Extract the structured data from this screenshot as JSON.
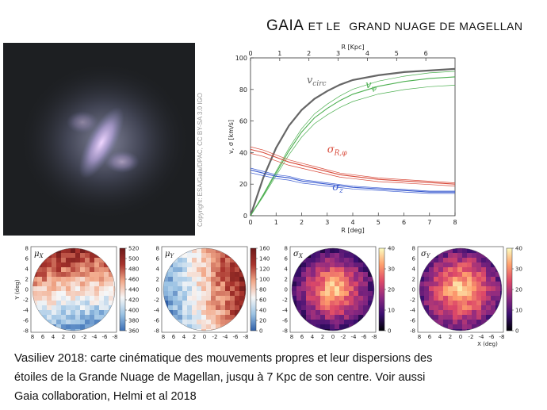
{
  "slide": {
    "title_part1": "GAIA",
    "title_part2": "ET LE",
    "title_part3": "GRAND NUAGE DE MAGELLAN",
    "photo_credit": "Copyright: ESA/Gaia/DPAC, CC BY-SA 3.0 IGO",
    "caption_name": "Vasiliev 2018",
    "caption_line1": ": carte cinématique des mouvements propres et leur dispersions des",
    "caption_line2": "étoiles de la Grande Nuage de Magellan, jusqu à 7 Kpc de son centre. Voir aussi",
    "caption_line3": "Gaia collaboration, Helmi et al 2018"
  },
  "chart_data": [
    {
      "type": "line",
      "xlabel": "R [deg]",
      "x2label": "R [Kpc]",
      "ylabel": "v, σ [km/s]",
      "xlim": [
        0,
        8
      ],
      "ylim": [
        0,
        100
      ],
      "x2lim": [
        0,
        7
      ],
      "xticks": [
        0,
        1,
        2,
        3,
        4,
        5,
        6,
        7,
        8
      ],
      "x2ticks": [
        0,
        1,
        2,
        3,
        4,
        5,
        6
      ],
      "yticks": [
        0,
        20,
        40,
        60,
        80,
        100
      ],
      "x": [
        0,
        0.5,
        1,
        1.5,
        2,
        2.5,
        3,
        3.5,
        4,
        5,
        6,
        7,
        8
      ],
      "series": [
        {
          "name": "v_circ",
          "label": "v",
          "sub": "circ",
          "color": "#666666",
          "values": [
            0,
            24,
            43,
            57,
            67,
            74,
            79,
            83,
            86,
            89,
            91,
            92,
            93
          ]
        },
        {
          "name": "v_φ",
          "label": "v",
          "sub": "φ",
          "color": "#4caf50",
          "values": [
            0,
            13,
            27,
            41,
            53,
            62,
            68,
            73,
            77,
            82,
            85,
            87,
            88
          ]
        },
        {
          "name": "σ_R,φ",
          "label": "σ",
          "sub": "R,φ",
          "color": "#d84a3a",
          "values": [
            42,
            40,
            37,
            34,
            32,
            30,
            28,
            26,
            25,
            23,
            22,
            21,
            20
          ]
        },
        {
          "name": "σ_z",
          "label": "σ",
          "sub": "z",
          "color": "#3a5bd0",
          "values": [
            29,
            27,
            25,
            24,
            22,
            21,
            20,
            19,
            18,
            17,
            16,
            15,
            15
          ]
        }
      ],
      "grid": false
    },
    {
      "type": "heatmap",
      "label": "μ",
      "sub": "X",
      "colormap": [
        "#3b6fb6",
        "#9cc3e4",
        "#f7f7f7",
        "#f2a98a",
        "#a9342d",
        "#6e1a1a"
      ],
      "colorbar_ticks": [
        360,
        380,
        400,
        420,
        440,
        460,
        480,
        500,
        520
      ],
      "colorbar_lim": [
        360,
        520
      ],
      "xticks": [
        8,
        6,
        4,
        2,
        0,
        -2,
        -4,
        -6,
        -8
      ],
      "yticks": [
        8,
        6,
        4,
        2,
        0,
        -2,
        -4,
        -6,
        -8
      ],
      "ylabel": "Y (deg)",
      "xlabel": ""
    },
    {
      "type": "heatmap",
      "label": "μ",
      "sub": "Y",
      "colormap": [
        "#2f5fa8",
        "#9cc3e4",
        "#f7f7f7",
        "#f2a98a",
        "#a9342d",
        "#6e1a1a"
      ],
      "colorbar_ticks": [
        0,
        20,
        40,
        60,
        80,
        100,
        120,
        140,
        160
      ],
      "colorbar_lim": [
        0,
        160
      ],
      "xticks": [
        8,
        6,
        4,
        2,
        0,
        -2,
        -4,
        -6,
        -8
      ],
      "yticks": [
        8,
        6,
        4,
        2,
        0,
        -2,
        -4,
        -6,
        -8
      ],
      "xlabel": ""
    },
    {
      "type": "heatmap",
      "label": "σ",
      "sub": "X",
      "colormap": [
        "#000004",
        "#3b0f70",
        "#8c2981",
        "#de4968",
        "#fe9f6d",
        "#fcfdbf"
      ],
      "colorbar_ticks": [
        0,
        10,
        20,
        30,
        40
      ],
      "colorbar_lim": [
        0,
        40
      ],
      "xticks": [
        8,
        6,
        4,
        2,
        0,
        -2,
        -4,
        -6,
        -8
      ],
      "yticks": [
        8,
        6,
        4,
        2,
        0,
        -2,
        -4,
        -6,
        -8
      ],
      "xlabel": ""
    },
    {
      "type": "heatmap",
      "label": "σ",
      "sub": "Y",
      "colormap": [
        "#000004",
        "#3b0f70",
        "#8c2981",
        "#de4968",
        "#fe9f6d",
        "#fcfdbf"
      ],
      "colorbar_ticks": [
        0,
        10,
        20,
        30,
        40
      ],
      "colorbar_lim": [
        0,
        40
      ],
      "xticks": [
        8,
        6,
        4,
        2,
        0,
        -2,
        -4,
        -6,
        -8
      ],
      "yticks": [
        8,
        6,
        4,
        2,
        0,
        -2,
        -4,
        -6,
        -8
      ],
      "xlabel": "X (deg)"
    }
  ]
}
